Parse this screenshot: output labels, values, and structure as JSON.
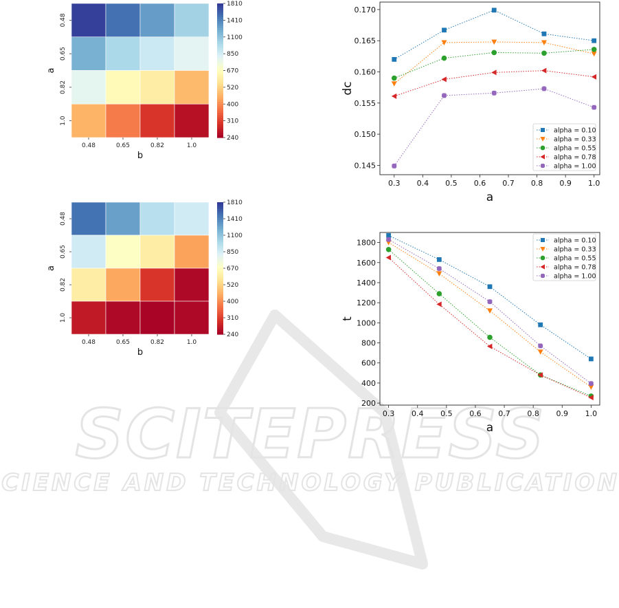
{
  "watermark": {
    "line1": "SCITEPRESS",
    "line2": "SCIENCE AND TECHNOLOGY PUBLICATIONS"
  },
  "chart_data": [
    {
      "type": "heatmap",
      "xlabel": "b",
      "ylabel": "a",
      "x_ticks": [
        "0.48",
        "0.65",
        "0.82",
        "1.0"
      ],
      "y_ticks": [
        "0.48",
        "0.65",
        "0.82",
        "1.0"
      ],
      "values": [
        [
          1760,
          1510,
          1300,
          1030
        ],
        [
          1200,
          1000,
          880,
          800
        ],
        [
          790,
          650,
          600,
          470
        ],
        [
          460,
          380,
          300,
          260
        ]
      ],
      "colorbar": {
        "ticks": [
          "1810",
          "1410",
          "1100",
          "850",
          "670",
          "520",
          "400",
          "310",
          "240"
        ],
        "min": 240,
        "max": 1810
      }
    },
    {
      "type": "line",
      "xlabel": "a",
      "ylabel": "dc",
      "xlim": [
        0.25,
        1.02
      ],
      "ylim": [
        0.1435,
        0.1712
      ],
      "x_ticks": [
        "0.3",
        "0.4",
        "0.5",
        "0.6",
        "0.7",
        "0.8",
        "0.9",
        "1.0"
      ],
      "y_ticks": [
        "0.145",
        "0.150",
        "0.155",
        "0.160",
        "0.165",
        "0.170"
      ],
      "x": [
        0.3,
        0.475,
        0.65,
        0.825,
        1.0
      ],
      "legend_position": "lower-right",
      "series": [
        {
          "name": "alpha = 0.10",
          "color": "#1f77b4",
          "marker": "square",
          "values": [
            0.162,
            0.1667,
            0.1699,
            0.1661,
            0.165
          ]
        },
        {
          "name": "alpha = 0.33",
          "color": "#ff7f0e",
          "marker": "triangle-down",
          "values": [
            0.1581,
            0.1647,
            0.1648,
            0.1647,
            0.1629
          ]
        },
        {
          "name": "alpha = 0.55",
          "color": "#2ca02c",
          "marker": "circle",
          "values": [
            0.159,
            0.1622,
            0.1631,
            0.163,
            0.1636
          ]
        },
        {
          "name": "alpha = 0.78",
          "color": "#d62728",
          "marker": "triangle-left",
          "values": [
            0.1561,
            0.1588,
            0.1599,
            0.1602,
            0.1592
          ]
        },
        {
          "name": "alpha = 1.00",
          "color": "#9467bd",
          "marker": "plus",
          "values": [
            0.1449,
            0.1562,
            0.1566,
            0.1573,
            0.1543
          ]
        }
      ]
    },
    {
      "type": "heatmap",
      "xlabel": "b",
      "ylabel": "a",
      "x_ticks": [
        "0.48",
        "0.65",
        "0.82",
        "1.0"
      ],
      "y_ticks": [
        "0.48",
        "0.65",
        "0.82",
        "1.0"
      ],
      "values": [
        [
          1500,
          1280,
          950,
          860
        ],
        [
          860,
          680,
          600,
          430
        ],
        [
          600,
          440,
          300,
          250
        ],
        [
          270,
          250,
          245,
          250
        ]
      ],
      "colorbar": {
        "ticks": [
          "1810",
          "1410",
          "1100",
          "850",
          "670",
          "520",
          "400",
          "310",
          "240"
        ],
        "min": 240,
        "max": 1810
      }
    },
    {
      "type": "line",
      "xlabel": "a",
      "ylabel": "t",
      "xlim": [
        0.27,
        1.03
      ],
      "ylim": [
        180,
        1900
      ],
      "x_ticks": [
        "0.3",
        "0.4",
        "0.5",
        "0.6",
        "0.7",
        "0.8",
        "0.9",
        "1.0"
      ],
      "y_ticks": [
        "200",
        "400",
        "600",
        "800",
        "1000",
        "1200",
        "1400",
        "1600",
        "1800"
      ],
      "x": [
        0.3,
        0.475,
        0.65,
        0.825,
        1.0
      ],
      "legend_position": "upper-right",
      "series": [
        {
          "name": "alpha = 0.10",
          "color": "#1f77b4",
          "marker": "square",
          "values": [
            1870,
            1630,
            1360,
            980,
            640
          ]
        },
        {
          "name": "alpha = 0.33",
          "color": "#ff7f0e",
          "marker": "triangle-down",
          "values": [
            1800,
            1490,
            1120,
            710,
            360
          ]
        },
        {
          "name": "alpha = 0.55",
          "color": "#2ca02c",
          "marker": "circle",
          "values": [
            1730,
            1290,
            855,
            480,
            270
          ]
        },
        {
          "name": "alpha = 0.78",
          "color": "#d62728",
          "marker": "triangle-left",
          "values": [
            1650,
            1185,
            765,
            480,
            255
          ]
        },
        {
          "name": "alpha = 1.00",
          "color": "#9467bd",
          "marker": "plus",
          "values": [
            1830,
            1540,
            1210,
            770,
            395
          ]
        }
      ]
    }
  ]
}
